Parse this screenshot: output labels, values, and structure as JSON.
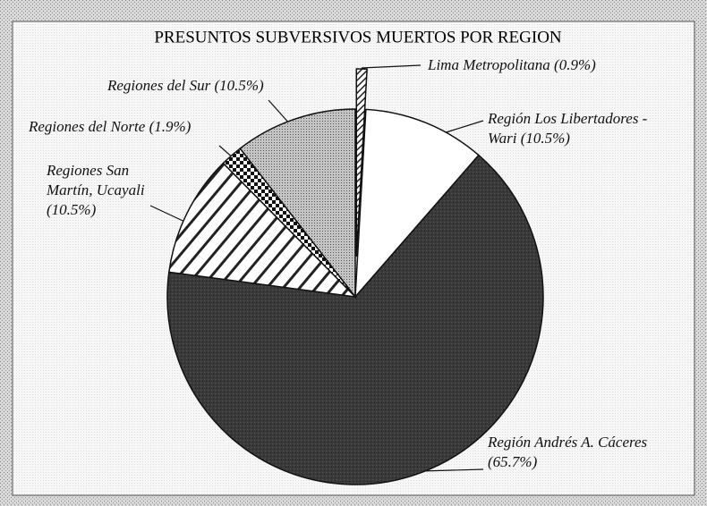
{
  "chart_data": {
    "type": "pie",
    "title": "PRESUNTOS SUBVERSIVOS MUERTOS POR REGION",
    "categories": [
      "Lima Metropolitana",
      "Región Los Libertadores - Wari",
      "Región Andrés A. Cáceres",
      "Regiones San Martín, Ucayali",
      "Regiones del Norte",
      "Regiones del Sur"
    ],
    "values": [
      0.9,
      10.5,
      65.7,
      10.5,
      1.9,
      10.5
    ],
    "value_labels": [
      "(0.9%)",
      "(10.5%)",
      "(65.7%)",
      "(10.5%)",
      "(1.9%)",
      "(10.5%)"
    ]
  }
}
